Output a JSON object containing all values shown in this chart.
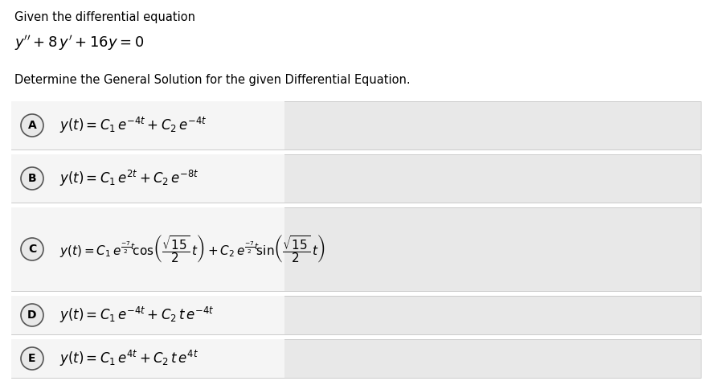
{
  "background_color": "#ffffff",
  "row_bg_color": "#e8e8e8",
  "formula_bg_color": "#f0f0f0",
  "text_color": "#000000",
  "circle_edge_color": "#555555",
  "header_text1": "Given the differential equation",
  "prompt": "Determine the General Solution for the given Differential Equation.",
  "labels": [
    "A",
    "B",
    "C",
    "D",
    "E"
  ],
  "formula_fontsizes": [
    12,
    12,
    11,
    12,
    12
  ],
  "header_fontsize": 10.5,
  "eq_fontsize": 13
}
